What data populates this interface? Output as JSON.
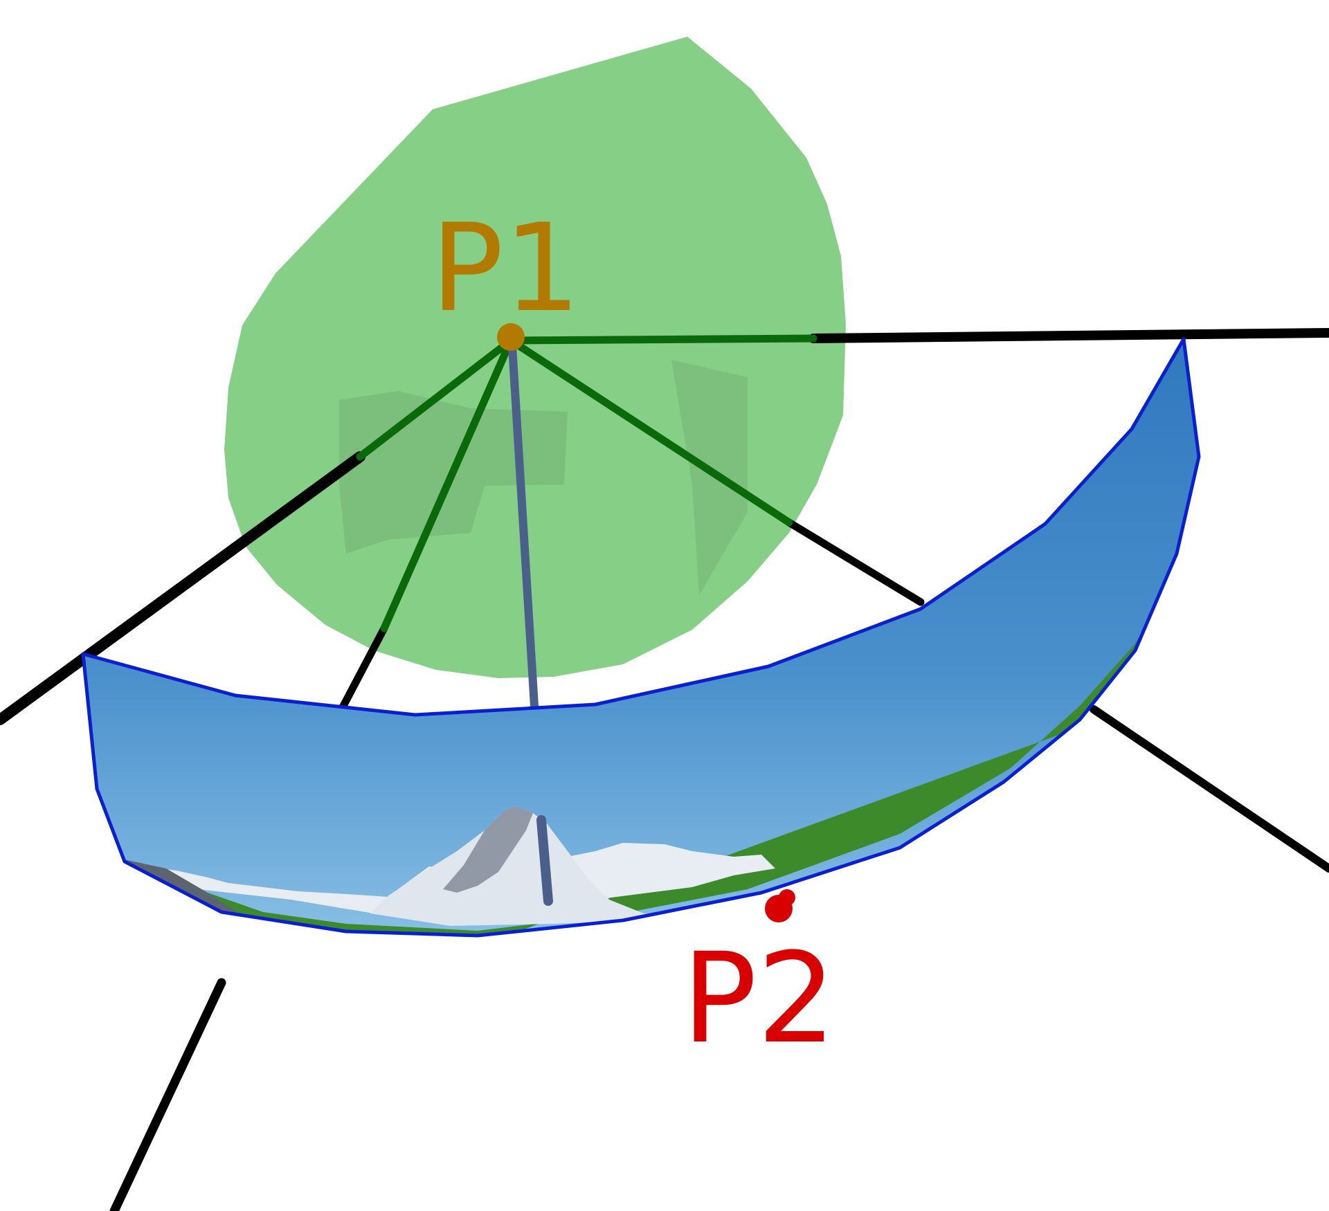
{
  "labels": {
    "p1": "P1",
    "p2": "P2"
  },
  "colors": {
    "background": "#ffffff",
    "sphere_fill": "#5dbf5d",
    "sphere_inner_shade": "#6a9f6a",
    "green_ray": "#0a6a0a",
    "black_ray": "#000000",
    "p1_point_and_label": "#b37a00",
    "p2_point_and_label": "#d90000",
    "panorama_border": "#0a1fd1",
    "panorama_sky_top": "#2f7bc0",
    "panorama_sky_horizon": "#6fb0e0",
    "snow": "#e8edf3",
    "rock": "#5c6470",
    "meadow": "#3d8a2a",
    "flowers": "#a877e0",
    "center_axis": "#4a5f8a"
  },
  "icons": {
    "panorama": "panoramic-mountain-image",
    "sphere": "translucent-green-sphere"
  }
}
